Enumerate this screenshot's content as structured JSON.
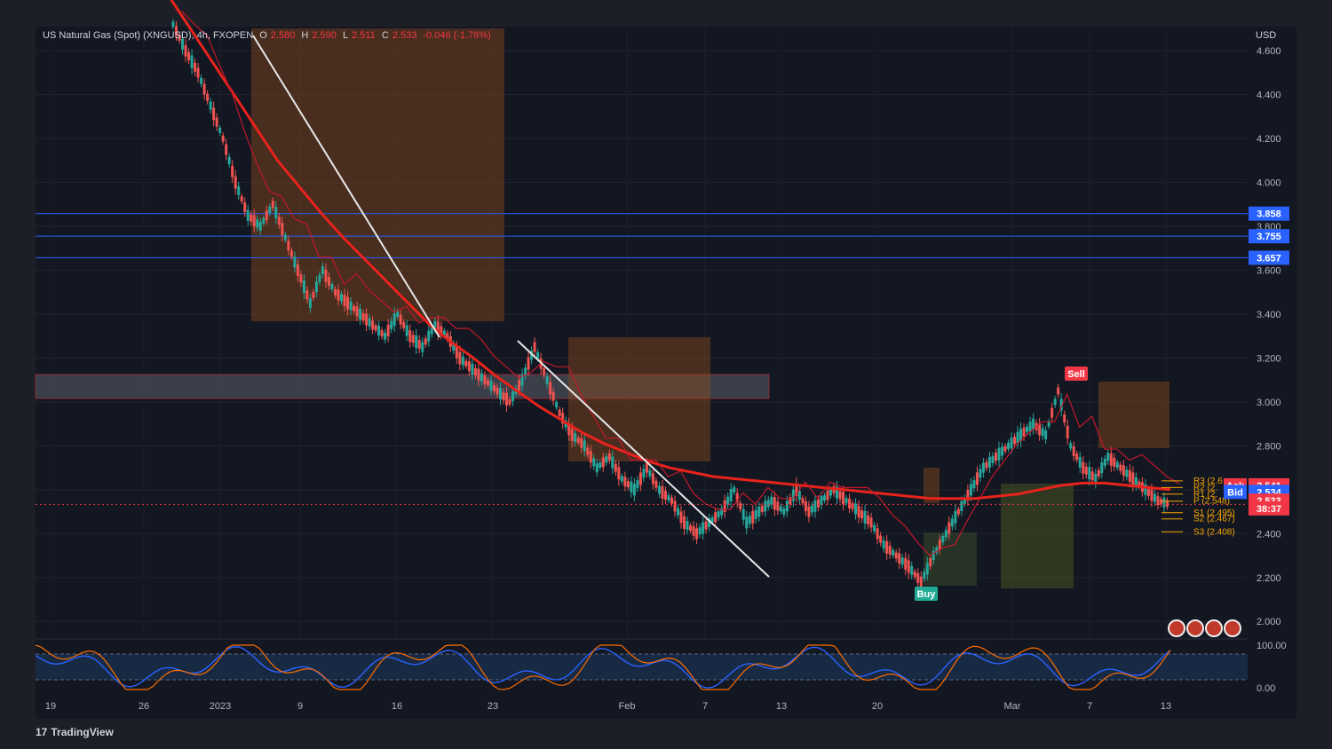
{
  "header": {
    "symbol": "US Natural Gas (Spot) (XNGUSD), 4h, FXOPEN",
    "o_label": "O",
    "o_value": "2.580",
    "h_label": "H",
    "h_value": "2.590",
    "l_label": "L",
    "l_value": "2.511",
    "c_label": "C",
    "c_value": "2.533",
    "change": "-0.046 (-1.78%)"
  },
  "currency_label": "USD",
  "brand": "TradingView",
  "colors": {
    "bg": "#131722",
    "up": "#26a69a",
    "down": "#ef5350",
    "ema": "#e8231c",
    "trend": "#e8e8e8",
    "hline": "#2962ff",
    "accent": "#f7a600"
  },
  "chart_data": {
    "type": "candlestick",
    "ylim": [
      1.92,
      4.71
    ],
    "y_ticks": [
      "4.600",
      "4.400",
      "4.200",
      "4.000",
      "3.800",
      "3.600",
      "3.400",
      "3.200",
      "3.000",
      "2.800",
      "2.600",
      "2.400",
      "2.200",
      "2.000"
    ],
    "x_ticks": [
      "19",
      "26",
      "2023",
      "9",
      "16",
      "23",
      "Feb",
      "7",
      "13",
      "20",
      "Mar",
      "7",
      "13"
    ],
    "horizontal_levels": [
      3.858,
      3.755,
      3.657
    ],
    "price_badges": [
      {
        "label": "3.858",
        "value": 3.858,
        "color": "#2962ff"
      },
      {
        "label": "3.755",
        "value": 3.755,
        "color": "#2962ff"
      },
      {
        "label": "3.657",
        "value": 3.657,
        "color": "#2962ff"
      }
    ],
    "last_price": {
      "label": "2.533",
      "value": 2.533,
      "countdown": "38:37"
    },
    "ask": {
      "label": "Ask",
      "value": "2.541"
    },
    "bid": {
      "label": "Bid",
      "value": "2.534"
    },
    "pivots": [
      {
        "label": "R3 (2.6",
        "value": 2.64
      },
      {
        "label": "R2 (2.",
        "value": 2.61
      },
      {
        "label": "R1 (2.",
        "value": 2.58
      },
      {
        "label": "P (2.548)",
        "value": 2.548
      },
      {
        "label": "S1 (2.495)",
        "value": 2.495
      },
      {
        "label": "S2 (2.467)",
        "value": 2.467
      },
      {
        "label": "S3 (2.408)",
        "value": 2.408
      }
    ],
    "signals": [
      {
        "label": "Sell",
        "value": 3.1
      },
      {
        "label": "Buy",
        "value": 2.13
      }
    ],
    "oscillator": {
      "ticks": [
        "100.00",
        "0.00"
      ],
      "upper": 80,
      "lower": 20
    },
    "price_path": [
      4.72,
      4.6,
      4.5,
      4.35,
      4.2,
      4.0,
      3.85,
      3.8,
      3.9,
      3.75,
      3.6,
      3.45,
      3.6,
      3.5,
      3.45,
      3.4,
      3.35,
      3.3,
      3.4,
      3.3,
      3.25,
      3.35,
      3.3,
      3.2,
      3.15,
      3.1,
      3.05,
      3.0,
      3.1,
      3.25,
      3.1,
      2.95,
      2.85,
      2.8,
      2.7,
      2.75,
      2.65,
      2.6,
      2.7,
      2.6,
      2.55,
      2.45,
      2.4,
      2.45,
      2.5,
      2.6,
      2.45,
      2.5,
      2.55,
      2.5,
      2.6,
      2.5,
      2.55,
      2.6,
      2.55,
      2.5,
      2.45,
      2.35,
      2.3,
      2.25,
      2.18,
      2.3,
      2.4,
      2.5,
      2.6,
      2.7,
      2.75,
      2.8,
      2.85,
      2.9,
      2.85,
      3.05,
      2.8,
      2.7,
      2.65,
      2.75,
      2.7,
      2.65,
      2.6,
      2.55,
      2.533
    ],
    "ema_path": [
      4.85,
      4.7,
      4.55,
      4.4,
      4.25,
      4.1,
      3.98,
      3.86,
      3.75,
      3.65,
      3.55,
      3.45,
      3.35,
      3.27,
      3.2,
      3.12,
      3.05,
      2.98,
      2.92,
      2.86,
      2.81,
      2.77,
      2.73,
      2.7,
      2.68,
      2.66,
      2.65,
      2.64,
      2.63,
      2.62,
      2.61,
      2.6,
      2.59,
      2.58,
      2.57,
      2.56,
      2.56,
      2.56,
      2.57,
      2.58,
      2.6,
      2.62,
      2.63,
      2.63,
      2.62,
      2.61,
      2.6
    ]
  }
}
